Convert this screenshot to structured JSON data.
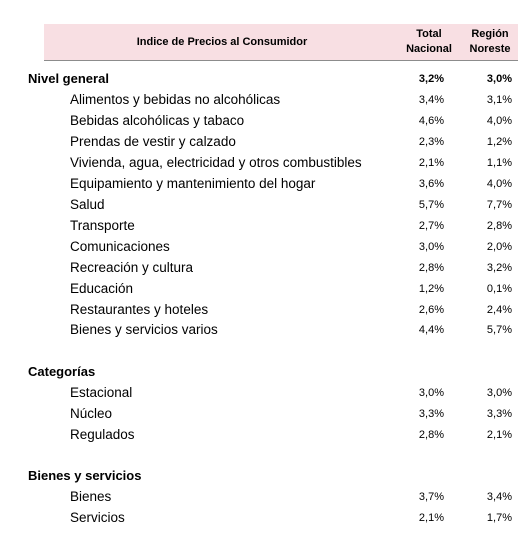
{
  "header": {
    "title": "Indice de Precios al Consumidor",
    "col1": [
      "Total",
      "Nacional"
    ],
    "col2": [
      "Región",
      "Noreste"
    ]
  },
  "rows": [
    {
      "type": "section",
      "label": "Nivel general",
      "v1": "3,2%",
      "v2": "3,0%"
    },
    {
      "type": "item",
      "label": "Alimentos y bebidas no alcohólicas",
      "v1": "3,4%",
      "v2": "3,1%"
    },
    {
      "type": "item",
      "label": "Bebidas alcohólicas y tabaco",
      "v1": "4,6%",
      "v2": "4,0%"
    },
    {
      "type": "item",
      "label": "Prendas de vestir y calzado",
      "v1": "2,3%",
      "v2": "1,2%"
    },
    {
      "type": "item",
      "label": "Vivienda, agua, electricidad y otros combustibles",
      "v1": "2,1%",
      "v2": "1,1%"
    },
    {
      "type": "item",
      "label": "Equipamiento y mantenimiento del hogar",
      "v1": "3,6%",
      "v2": "4,0%"
    },
    {
      "type": "item",
      "label": "Salud",
      "v1": "5,7%",
      "v2": "7,7%"
    },
    {
      "type": "item",
      "label": "Transporte",
      "v1": "2,7%",
      "v2": "2,8%"
    },
    {
      "type": "item",
      "label": "Comunicaciones",
      "v1": "3,0%",
      "v2": "2,0%"
    },
    {
      "type": "item",
      "label": "Recreación y cultura",
      "v1": "2,8%",
      "v2": "3,2%"
    },
    {
      "type": "item",
      "label": "Educación",
      "v1": "1,2%",
      "v2": "0,1%"
    },
    {
      "type": "item",
      "label": "Restaurantes y hoteles",
      "v1": "2,6%",
      "v2": "2,4%"
    },
    {
      "type": "item",
      "label": "Bienes y servicios varios",
      "v1": "4,4%",
      "v2": "5,7%"
    },
    {
      "type": "section",
      "label": "Categorías",
      "v1": "",
      "v2": ""
    },
    {
      "type": "item",
      "label": "Estacional",
      "v1": "3,0%",
      "v2": "3,0%"
    },
    {
      "type": "item",
      "label": "Núcleo",
      "v1": "3,3%",
      "v2": "3,3%"
    },
    {
      "type": "item",
      "label": "Regulados",
      "v1": "2,8%",
      "v2": "2,1%"
    },
    {
      "type": "section",
      "label": "Bienes y servicios",
      "v1": "",
      "v2": ""
    },
    {
      "type": "item",
      "label": "Bienes",
      "v1": "3,7%",
      "v2": "3,4%"
    },
    {
      "type": "item",
      "label": "Servicios",
      "v1": "2,1%",
      "v2": "1,7%"
    }
  ]
}
